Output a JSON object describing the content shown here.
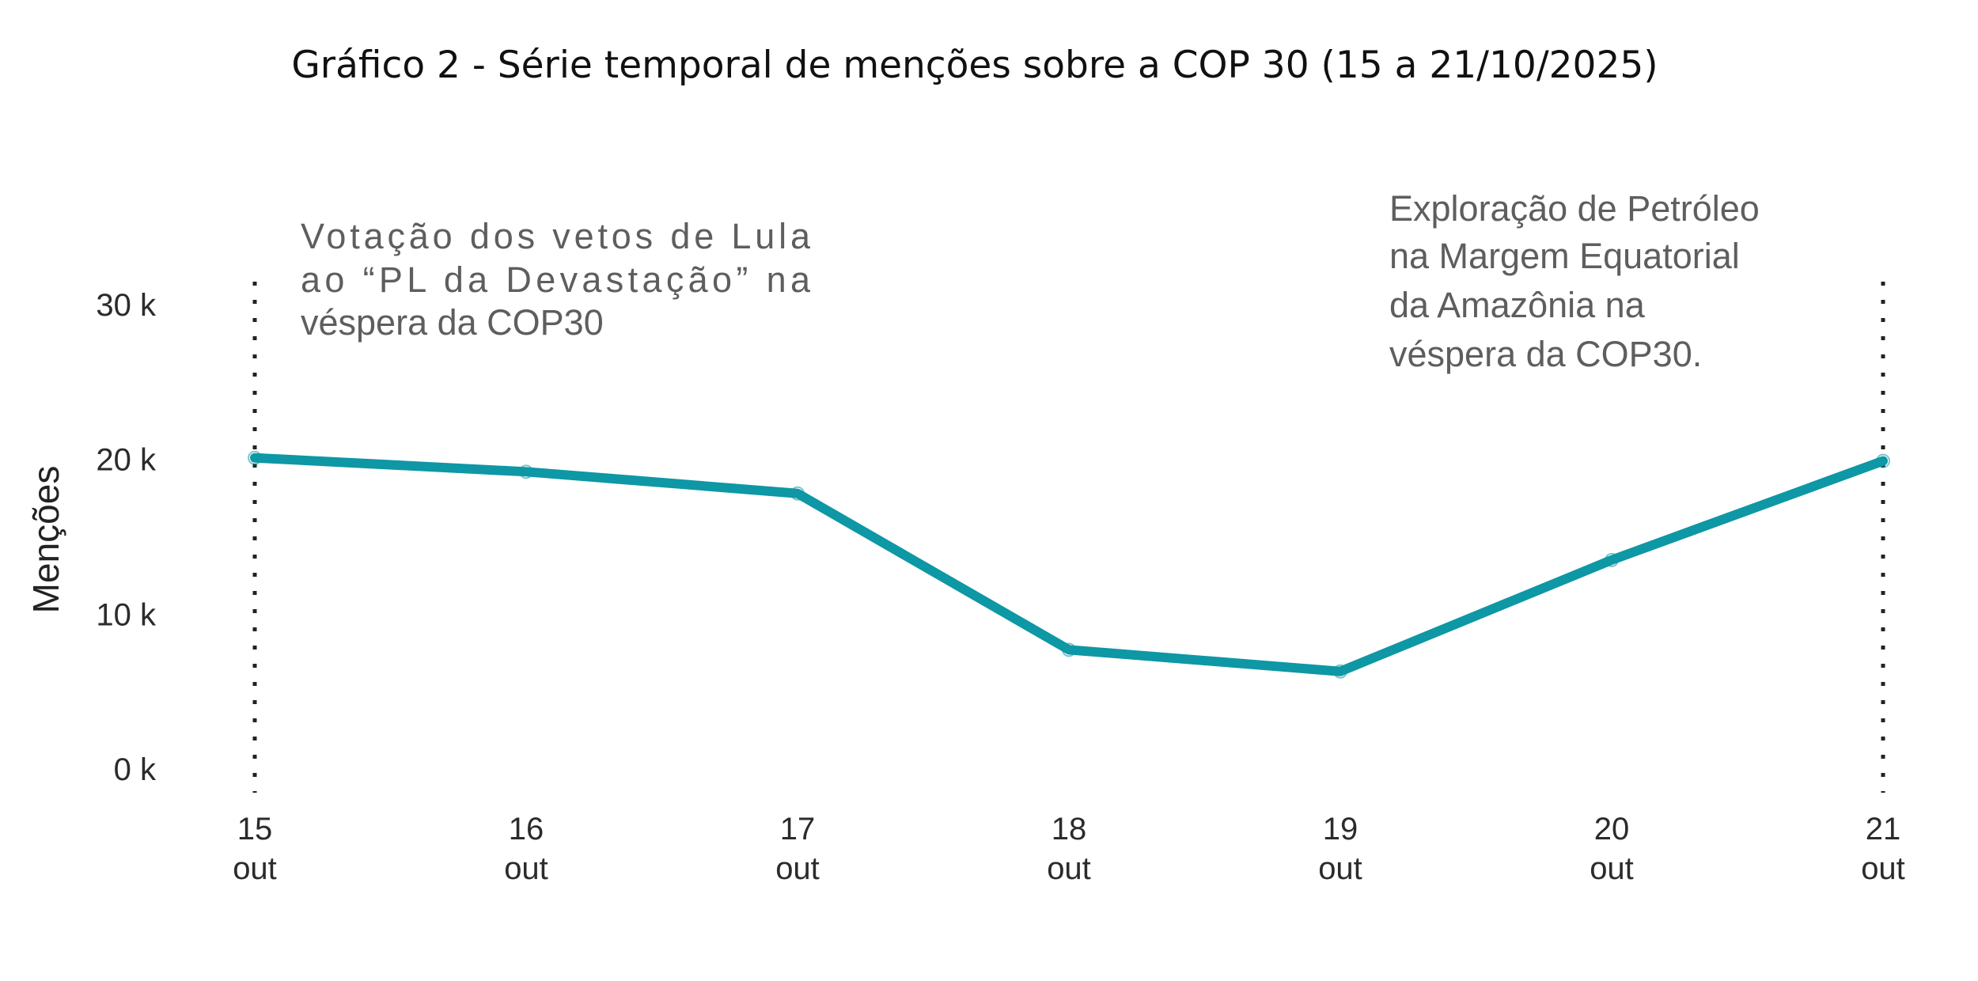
{
  "chart_data": {
    "type": "line",
    "title": "Gráfico 2 - Série temporal de menções sobre a COP 30 (15 a 21/10/2025)",
    "xlabel": "",
    "ylabel": "Menções",
    "categories": [
      {
        "day": "15",
        "month": "out"
      },
      {
        "day": "16",
        "month": "out"
      },
      {
        "day": "17",
        "month": "out"
      },
      {
        "day": "18",
        "month": "out"
      },
      {
        "day": "19",
        "month": "out"
      },
      {
        "day": "20",
        "month": "out"
      },
      {
        "day": "21",
        "month": "out"
      }
    ],
    "series": [
      {
        "name": "Menções",
        "color": "#0e97a5",
        "values": [
          20100,
          19200,
          17800,
          7700,
          6300,
          13500,
          19900
        ]
      }
    ],
    "ylim": [
      0,
      30000
    ],
    "yticks": [
      {
        "value": 0,
        "label": "0 k"
      },
      {
        "value": 10000,
        "label": "10 k"
      },
      {
        "value": 20000,
        "label": "20 k"
      },
      {
        "value": 30000,
        "label": "30 k"
      }
    ],
    "grid": false,
    "legend": "none",
    "reference_lines": [
      {
        "category_index": 0,
        "style": "dotted",
        "color": "#222222"
      },
      {
        "category_index": 6,
        "style": "dotted",
        "color": "#222222"
      }
    ],
    "annotations": [
      {
        "category_index": 0,
        "side": "right",
        "align": "justify",
        "lines": [
          "Votação dos vetos de Lula",
          "ao “PL da Devastação” na",
          "véspera da COP30"
        ]
      },
      {
        "category_index": 6,
        "side": "left",
        "align": "left",
        "lines": [
          "Exploração de Petróleo",
          "na Margem Equatorial",
          "da Amazônia na",
          "véspera da COP30."
        ]
      }
    ]
  }
}
